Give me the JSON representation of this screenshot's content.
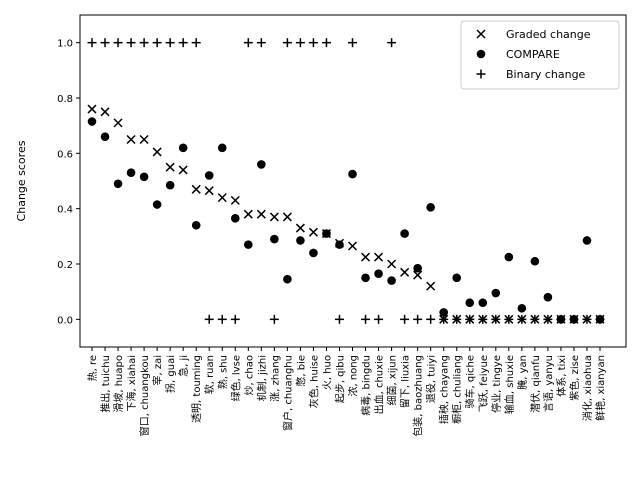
{
  "chart_data": {
    "type": "scatter",
    "ylabel": "Change scores",
    "xlabel": "",
    "title": "",
    "ylim": [
      -0.1,
      1.1
    ],
    "yticks": [
      0.0,
      0.2,
      0.4,
      0.6,
      0.8,
      1.0
    ],
    "grid": false,
    "legend_position": "top-right",
    "categories": [
      "热, re",
      "推出, tuichu",
      "滑坡, huapo",
      "下海, xiahai",
      "窗口, chuangkou",
      "宰, zai",
      "拐, guai",
      "急, ji",
      "透明, touming",
      "软, ruan",
      "熟, shu",
      "绿色, lvse",
      "炒, chao",
      "机制, jizhi",
      "涨, zhang",
      "窗户, chuanghu",
      "憋, bie",
      "灰色, huise",
      "火, huo",
      "起步, qibu",
      "浓, nong",
      "病毒, bingdu",
      "出血, chuxie",
      "细菌, xijun",
      "留下, liuxia",
      "包装, baozhuang",
      "退役, tuiyi",
      "插秧, chayang",
      "橱柜, chuliang",
      "骑车, qiche",
      "飞跃, feiyue",
      "停业, tingye",
      "输血, shuxie",
      "腌, yan",
      "潜伏, qianfu",
      "言语, yanyu",
      "体系, tixi",
      "紫色, zise",
      "消化, xiaohua",
      "鲜艳, xianyan"
    ],
    "series": [
      {
        "name": "Graded change",
        "marker": "x",
        "color": "#000000",
        "values": [
          0.76,
          0.75,
          0.71,
          0.65,
          0.65,
          0.605,
          0.55,
          0.54,
          0.47,
          0.465,
          0.44,
          0.43,
          0.38,
          0.38,
          0.37,
          0.37,
          0.33,
          0.315,
          0.31,
          0.275,
          0.265,
          0.225,
          0.225,
          0.2,
          0.17,
          0.16,
          0.12,
          0.0,
          0.0,
          0.0,
          0.0,
          0.0,
          0.0,
          0.0,
          0.0,
          0.0,
          0.0,
          0.0,
          0.0,
          0.0
        ]
      },
      {
        "name": "COMPARE",
        "marker": "o",
        "color": "#000000",
        "values": [
          0.715,
          0.66,
          0.49,
          0.53,
          0.515,
          0.415,
          0.485,
          0.62,
          0.34,
          0.52,
          0.62,
          0.365,
          0.27,
          0.56,
          0.29,
          0.145,
          0.285,
          0.24,
          0.31,
          0.27,
          0.525,
          0.15,
          0.165,
          0.14,
          0.31,
          0.185,
          0.405,
          0.025,
          0.15,
          0.06,
          0.06,
          0.095,
          0.225,
          0.04,
          0.21,
          0.08,
          0.0,
          0.0,
          0.285,
          0.0
        ]
      },
      {
        "name": "Binary change",
        "marker": "+",
        "color": "#000000",
        "values": [
          1,
          1,
          1,
          1,
          1,
          1,
          1,
          1,
          1,
          0,
          0,
          0,
          1,
          1,
          0,
          1,
          1,
          1,
          1,
          0,
          1,
          0,
          0,
          1,
          0,
          0,
          0,
          0,
          0,
          0,
          0,
          0,
          0,
          0,
          0,
          0,
          0,
          0,
          0,
          0
        ]
      }
    ]
  }
}
